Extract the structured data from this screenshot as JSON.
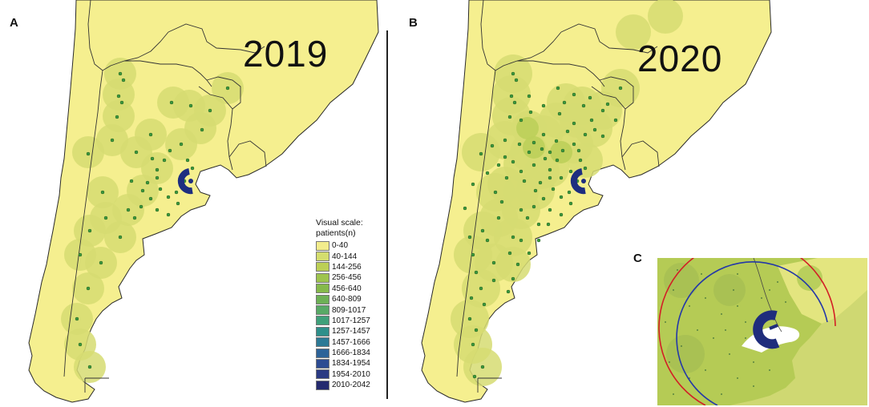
{
  "panels": {
    "a": {
      "letter": "A",
      "year": "2019"
    },
    "b": {
      "letter": "B",
      "year": "2020"
    },
    "c": {
      "letter": "C"
    }
  },
  "legend": {
    "title_line1": "Visual scale:",
    "title_line2": "patients(n)",
    "items": [
      {
        "label": "0-40",
        "color": "#f2ec8c"
      },
      {
        "label": "40-144",
        "color": "#d4dd6e"
      },
      {
        "label": "144-256",
        "color": "#bccf55"
      },
      {
        "label": "256-456",
        "color": "#9ec44e"
      },
      {
        "label": "456-640",
        "color": "#85b94b"
      },
      {
        "label": "640-809",
        "color": "#6db055"
      },
      {
        "label": "809-1017",
        "color": "#58a966"
      },
      {
        "label": "1017-1257",
        "color": "#3fa07a"
      },
      {
        "label": "1257-1457",
        "color": "#2e8f8a"
      },
      {
        "label": "1457-1666",
        "color": "#2d7a96"
      },
      {
        "label": "1666-1834",
        "color": "#2d6398"
      },
      {
        "label": "1834-1954",
        "color": "#2c4b92"
      },
      {
        "label": "1954-2010",
        "color": "#2a3a83"
      },
      {
        "label": "2010-2042",
        "color": "#242a6e"
      }
    ]
  },
  "colors": {
    "land": "#f5ef8f",
    "border": "#333333",
    "halo": "#d6dc72",
    "halo_dense": "#bccf5a",
    "dot": "#3c9a3c",
    "hotspot": "#1e2e80",
    "arc_red": "#d21f26",
    "arc_blue": "#2438a8"
  }
}
